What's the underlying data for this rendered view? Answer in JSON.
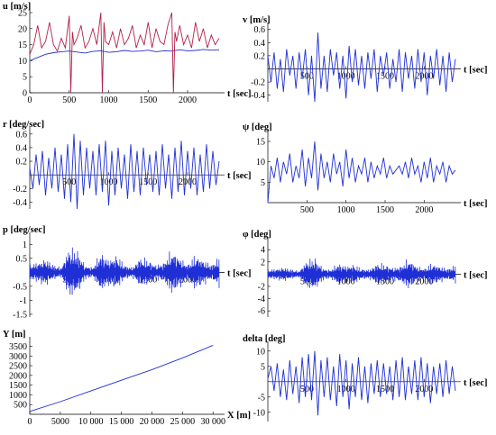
{
  "chart_data": [
    {
      "id": "u",
      "type": "line",
      "ylabel": "u [m/s]",
      "xlabel": "t [sec]",
      "xlim": [
        0,
        2400
      ],
      "ylim": [
        0,
        25
      ],
      "xticks": [
        0,
        500,
        1000,
        1500,
        2000
      ],
      "yticks": [
        0,
        5,
        10,
        15,
        20,
        25
      ],
      "x_axis_at": 0,
      "series": [
        {
          "color": "#1f2fd6",
          "x": [
            0,
            100,
            200,
            300,
            400,
            500,
            600,
            700,
            800,
            900,
            1000,
            1100,
            1200,
            1300,
            1400,
            1500,
            1600,
            1700,
            1800,
            1900,
            2000,
            2100,
            2200,
            2300,
            2400
          ],
          "values": [
            10,
            11,
            12,
            12.5,
            12.8,
            13,
            12.7,
            12.4,
            12.9,
            13.1,
            12.6,
            12.8,
            13.2,
            12.9,
            13,
            13.3,
            12.8,
            13.1,
            13,
            13.4,
            13.1,
            13.2,
            13.5,
            13.3,
            13.4
          ]
        },
        {
          "color": "#b0204a",
          "x": [
            0,
            50,
            100,
            150,
            200,
            250,
            300,
            350,
            400,
            450,
            500,
            520,
            540,
            560,
            600,
            650,
            700,
            750,
            800,
            850,
            900,
            920,
            940,
            960,
            1000,
            1050,
            1100,
            1150,
            1200,
            1250,
            1300,
            1350,
            1400,
            1450,
            1500,
            1550,
            1600,
            1650,
            1700,
            1750,
            1800,
            1820,
            1840,
            1860,
            1900,
            1950,
            2000,
            2050,
            2100,
            2150,
            2200,
            2250,
            2300,
            2350,
            2400
          ],
          "values": [
            12,
            15,
            21,
            14,
            16,
            22,
            15,
            13,
            17,
            14,
            24,
            0,
            19,
            15,
            17,
            21,
            14,
            16,
            20,
            15,
            25,
            0,
            22,
            16,
            15,
            19,
            14,
            20,
            15,
            17,
            21,
            14,
            18,
            15,
            22,
            14,
            20,
            16,
            15,
            21,
            25,
            0,
            19,
            16,
            21,
            15,
            18,
            14,
            22,
            16,
            20,
            14,
            18,
            15,
            17
          ]
        }
      ]
    },
    {
      "id": "v",
      "type": "line",
      "ylabel": "v [m/s]",
      "xlabel": "t [sec]",
      "xlim": [
        0,
        2400
      ],
      "ylim": [
        -0.5,
        0.65
      ],
      "xticks": [
        500,
        1000,
        1500,
        2000
      ],
      "yticks": [
        -0.4,
        -0.2,
        0.2,
        0.4,
        0.6
      ],
      "x_axis_at": 0,
      "series": [
        {
          "color": "#1f2fd6",
          "x": [
            0,
            40,
            80,
            120,
            160,
            200,
            240,
            280,
            320,
            360,
            400,
            440,
            480,
            520,
            560,
            600,
            640,
            680,
            720,
            760,
            800,
            840,
            880,
            920,
            960,
            1000,
            1040,
            1080,
            1120,
            1160,
            1200,
            1240,
            1280,
            1320,
            1360,
            1400,
            1440,
            1480,
            1520,
            1560,
            1600,
            1640,
            1680,
            1720,
            1760,
            1800,
            1840,
            1880,
            1920,
            1960,
            2000,
            2040,
            2080,
            2120,
            2160,
            2200,
            2240,
            2280,
            2320,
            2360,
            2400
          ],
          "values": [
            0.2,
            -0.2,
            0.25,
            -0.3,
            0.15,
            -0.35,
            0.3,
            -0.1,
            0.2,
            -0.3,
            0.25,
            -0.15,
            0.3,
            -0.4,
            0.2,
            -0.5,
            0.55,
            -0.3,
            0.2,
            -0.35,
            0.3,
            -0.1,
            0.25,
            -0.3,
            0.2,
            -0.45,
            0.35,
            -0.2,
            0.3,
            -0.25,
            0.2,
            -0.3,
            0.25,
            -0.15,
            0.3,
            -0.35,
            0.2,
            -0.1,
            0.25,
            -0.3,
            0.15,
            -0.2,
            0.3,
            -0.35,
            0.25,
            -0.15,
            0.2,
            -0.3,
            0.3,
            -0.2,
            0.25,
            -0.4,
            0.2,
            -0.15,
            0.3,
            -0.25,
            0.2,
            -0.35,
            0.25,
            -0.2,
            0.15
          ]
        }
      ]
    },
    {
      "id": "r",
      "type": "line",
      "ylabel": "r [deg/sec]",
      "xlabel": "t [sec]",
      "xlim": [
        0,
        2400
      ],
      "ylim": [
        -0.5,
        0.65
      ],
      "xticks": [
        500,
        1000,
        1500,
        2000
      ],
      "yticks": [
        -0.4,
        -0.2,
        0.2,
        0.4,
        0.6
      ],
      "x_axis_at": 0,
      "series": [
        {
          "color": "#1f2fd6",
          "x": [
            0,
            40,
            80,
            120,
            160,
            200,
            240,
            280,
            320,
            360,
            400,
            440,
            480,
            520,
            560,
            600,
            640,
            680,
            720,
            760,
            800,
            840,
            880,
            920,
            960,
            1000,
            1040,
            1080,
            1120,
            1160,
            1200,
            1240,
            1280,
            1320,
            1360,
            1400,
            1440,
            1480,
            1520,
            1560,
            1600,
            1640,
            1680,
            1720,
            1760,
            1800,
            1840,
            1880,
            1920,
            1960,
            2000,
            2040,
            2080,
            2120,
            2160,
            2200,
            2240,
            2280,
            2320,
            2360,
            2400
          ],
          "values": [
            0.1,
            -0.2,
            0.3,
            -0.15,
            0.35,
            -0.3,
            0.25,
            -0.2,
            0.4,
            -0.25,
            0.3,
            -0.35,
            0.45,
            -0.4,
            0.6,
            -0.5,
            0.5,
            -0.3,
            0.4,
            -0.2,
            0.35,
            -0.3,
            0.45,
            -0.25,
            0.5,
            -0.45,
            0.35,
            -0.3,
            0.4,
            -0.2,
            0.3,
            -0.35,
            0.45,
            -0.25,
            0.35,
            -0.3,
            0.4,
            -0.15,
            0.3,
            -0.25,
            0.35,
            -0.3,
            0.45,
            -0.2,
            0.3,
            -0.35,
            0.4,
            -0.25,
            0.5,
            -0.3,
            0.35,
            -0.2,
            0.4,
            -0.3,
            0.3,
            -0.25,
            0.45,
            -0.2,
            0.35,
            -0.15,
            0.2
          ]
        }
      ]
    },
    {
      "id": "psi",
      "type": "line",
      "ylabel": "ψ [deg]",
      "xlabel": "t [sec]",
      "xlim": [
        0,
        2400
      ],
      "ylim": [
        0,
        17
      ],
      "xticks": [
        500,
        1000,
        1500,
        2000
      ],
      "yticks": [
        5,
        10,
        15
      ],
      "x_axis_at": 0,
      "series": [
        {
          "color": "#1f2fd6",
          "x": [
            0,
            40,
            80,
            120,
            160,
            200,
            240,
            280,
            320,
            360,
            400,
            440,
            480,
            520,
            560,
            600,
            640,
            680,
            720,
            760,
            800,
            840,
            880,
            920,
            960,
            1000,
            1040,
            1080,
            1120,
            1160,
            1200,
            1240,
            1280,
            1320,
            1360,
            1400,
            1440,
            1480,
            1520,
            1560,
            1600,
            1640,
            1680,
            1720,
            1760,
            1800,
            1840,
            1880,
            1920,
            1960,
            2000,
            2040,
            2080,
            2120,
            2160,
            2200,
            2240,
            2280,
            2320,
            2360,
            2400
          ],
          "values": [
            0,
            9,
            6,
            11,
            5,
            10,
            7,
            12,
            5,
            9,
            6,
            13,
            4,
            11,
            6,
            15,
            3,
            12,
            6,
            10,
            5,
            12,
            7,
            10,
            4,
            13,
            6,
            11,
            5,
            9,
            7,
            11,
            5,
            10,
            6,
            9,
            7,
            11,
            6,
            9,
            7,
            8,
            9,
            7,
            10,
            6,
            11,
            7,
            9,
            5,
            10,
            6,
            11,
            5,
            9,
            7,
            10,
            5,
            9,
            7,
            8
          ]
        }
      ]
    },
    {
      "id": "p",
      "type": "line",
      "ylabel": "p [deg/sec]",
      "xlabel": "t [sec]",
      "xlim": [
        0,
        2400
      ],
      "ylim": [
        -1.6,
        1.3
      ],
      "xticks": [
        500,
        1000,
        1500,
        2000
      ],
      "yticks": [
        -1.5,
        -1.0,
        -0.5,
        0.5,
        1.0
      ],
      "x_axis_at": 0,
      "envelope": {
        "x": [
          0,
          100,
          200,
          300,
          400,
          500,
          600,
          700,
          800,
          900,
          1000,
          1100,
          1200,
          1300,
          1400,
          1500,
          1600,
          1700,
          1800,
          1900,
          2000,
          2100,
          2200,
          2300,
          2400
        ],
        "amplitude": [
          0.3,
          0.4,
          0.55,
          0.3,
          0.2,
          1.0,
          0.9,
          0.3,
          0.2,
          0.8,
          0.5,
          0.7,
          0.3,
          0.2,
          0.6,
          0.5,
          0.3,
          0.4,
          0.9,
          0.6,
          0.3,
          0.7,
          0.5,
          0.3,
          0.6
        ]
      },
      "series": [
        {
          "color": "#1f2fd6"
        }
      ]
    },
    {
      "id": "phi",
      "type": "line",
      "ylabel": "φ [deg]",
      "xlabel": "t [sec]",
      "xlim": [
        0,
        2400
      ],
      "ylim": [
        -7,
        5.5
      ],
      "xticks": [
        500,
        1000,
        1500,
        2000
      ],
      "yticks": [
        -6,
        -4,
        -2,
        2,
        4
      ],
      "x_axis_at": 0,
      "envelope": {
        "x": [
          0,
          100,
          200,
          300,
          400,
          500,
          600,
          700,
          800,
          900,
          1000,
          1100,
          1200,
          1300,
          1400,
          1500,
          1600,
          1700,
          1800,
          1900,
          2000,
          2100,
          2200,
          2300,
          2400
        ],
        "amplitude": [
          0.8,
          1.0,
          1.3,
          0.9,
          0.6,
          2.5,
          3.0,
          1.2,
          0.8,
          2.0,
          1.5,
          1.8,
          1.0,
          0.9,
          2.0,
          1.8,
          1.2,
          1.5,
          2.8,
          1.6,
          1.0,
          2.0,
          1.5,
          1.0,
          1.6
        ]
      },
      "series": [
        {
          "color": "#1f2fd6"
        }
      ]
    },
    {
      "id": "Y",
      "type": "line",
      "ylabel": "Y [m]",
      "xlabel": "X [m]",
      "xlim": [
        0,
        31000
      ],
      "ylim": [
        0,
        3800
      ],
      "xticks": [
        0,
        5000,
        10000,
        15000,
        20000,
        25000,
        30000
      ],
      "xticklabels": [
        "0",
        "5000",
        "10 000",
        "15 000",
        "20 000",
        "25 000",
        "30 000"
      ],
      "yticks": [
        500,
        1000,
        1500,
        2000,
        2500,
        3000,
        3500
      ],
      "x_axis_at": 0,
      "series": [
        {
          "color": "#1f2fd6",
          "x": [
            0,
            5000,
            10000,
            15000,
            20000,
            25000,
            30000
          ],
          "values": [
            150,
            650,
            1200,
            1750,
            2300,
            2900,
            3550
          ]
        }
      ]
    },
    {
      "id": "delta",
      "type": "line",
      "ylabel": "delta [deg]",
      "xlabel": "t [sec]",
      "xlim": [
        0,
        2400
      ],
      "ylim": [
        -13,
        12
      ],
      "xticks": [
        500,
        1000,
        1500,
        2000
      ],
      "yticks": [
        -10,
        -5,
        5,
        10
      ],
      "x_axis_at": 0,
      "series": [
        {
          "color": "#1f2fd6",
          "x": [
            0,
            40,
            80,
            120,
            160,
            200,
            240,
            280,
            320,
            360,
            400,
            440,
            480,
            520,
            560,
            600,
            640,
            680,
            720,
            760,
            800,
            840,
            880,
            920,
            960,
            1000,
            1040,
            1080,
            1120,
            1160,
            1200,
            1240,
            1280,
            1320,
            1360,
            1400,
            1440,
            1480,
            1520,
            1560,
            1600,
            1640,
            1680,
            1720,
            1760,
            1800,
            1840,
            1880,
            1920,
            1960,
            2000,
            2040,
            2080,
            2120,
            2160,
            2200,
            2240,
            2280,
            2320,
            2360,
            2400
          ],
          "values": [
            1,
            5,
            -3,
            6,
            -5,
            4,
            -6,
            7,
            -4,
            5,
            -7,
            8,
            -5,
            9,
            -6,
            10,
            -11,
            7,
            -5,
            8,
            -6,
            5,
            -8,
            9,
            -5,
            7,
            -9,
            6,
            -5,
            8,
            -6,
            5,
            -7,
            6,
            -4,
            7,
            -5,
            6,
            -4,
            5,
            -6,
            7,
            -5,
            8,
            -6,
            5,
            -4,
            7,
            -6,
            8,
            -5,
            6,
            -7,
            5,
            -4,
            6,
            -5,
            7,
            -4,
            5,
            -3
          ]
        }
      ]
    }
  ]
}
